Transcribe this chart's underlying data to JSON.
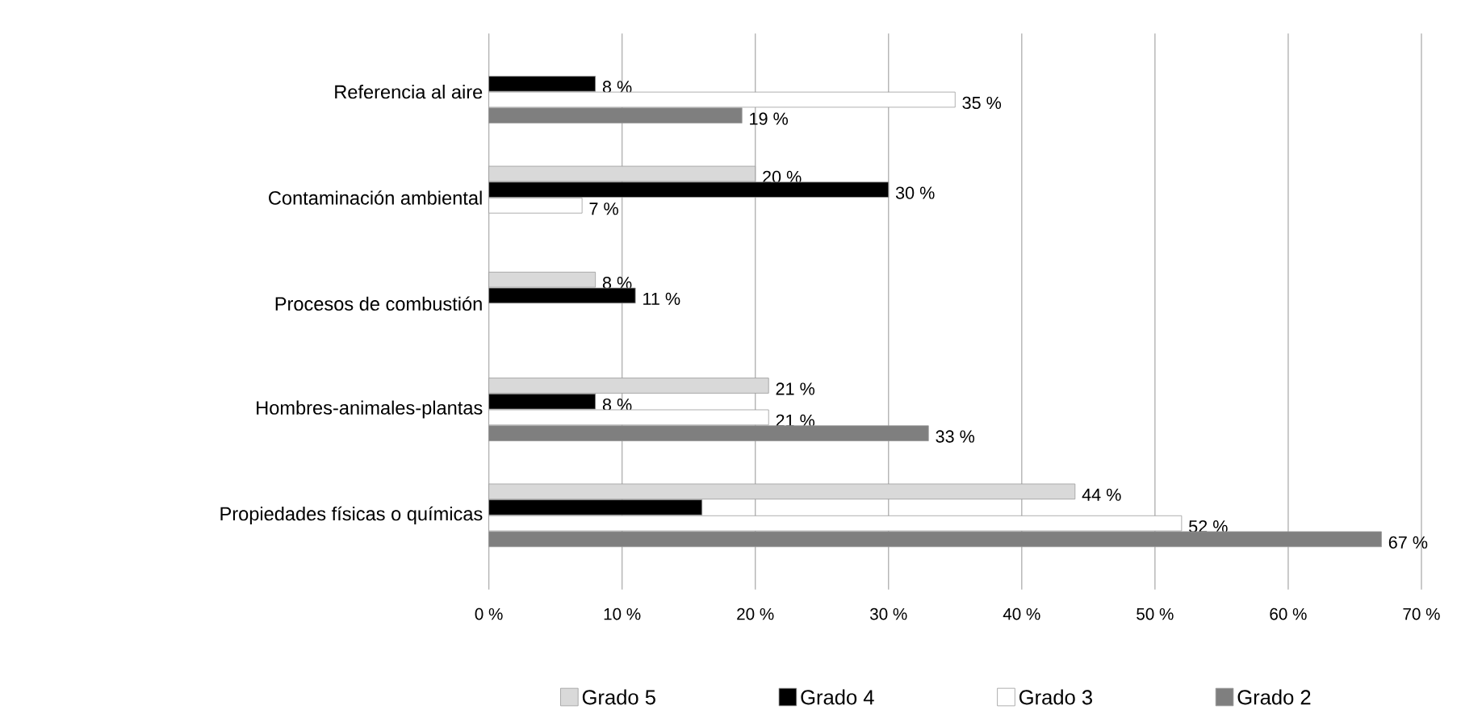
{
  "chart_data": {
    "type": "bar",
    "orientation": "horizontal",
    "categories": [
      "Referencia al aire",
      "Contaminación ambiental",
      "Procesos de combustión",
      "Hombres-animales-plantas",
      "Propiedades físicas o químicas"
    ],
    "series": [
      {
        "name": "Grado 5",
        "color": "#d9d9d9",
        "values": [
          null,
          20,
          8,
          21,
          44
        ],
        "value_labels": [
          null,
          "20 %",
          "8 %",
          "21 %",
          "44 %"
        ]
      },
      {
        "name": "Grado 4",
        "color": "#000000",
        "values": [
          8,
          30,
          11,
          8,
          16
        ],
        "value_labels": [
          "8 %",
          "30 %",
          "11 %",
          "8 %",
          null
        ]
      },
      {
        "name": "Grado 3",
        "color": "#ffffff",
        "values": [
          35,
          7,
          null,
          21,
          52
        ],
        "value_labels": [
          "35 %",
          "7 %",
          null,
          "21 %",
          "52 %"
        ]
      },
      {
        "name": "Grado 2",
        "color": "#7f7f7f",
        "values": [
          19,
          null,
          null,
          33,
          67
        ],
        "value_labels": [
          "19 %",
          null,
          null,
          "33 %",
          "67 %"
        ]
      }
    ],
    "xlim": [
      0,
      70
    ],
    "xticks": [
      {
        "value": 0,
        "label": "0 %"
      },
      {
        "value": 10,
        "label": "10 %"
      },
      {
        "value": 20,
        "label": "20 %"
      },
      {
        "value": 30,
        "label": "30 %"
      },
      {
        "value": 40,
        "label": "40 %"
      },
      {
        "value": 50,
        "label": "50 %"
      },
      {
        "value": 60,
        "label": "60 %"
      },
      {
        "value": 70,
        "label": "70 %"
      }
    ],
    "grid": "x",
    "legend": "bottom"
  }
}
